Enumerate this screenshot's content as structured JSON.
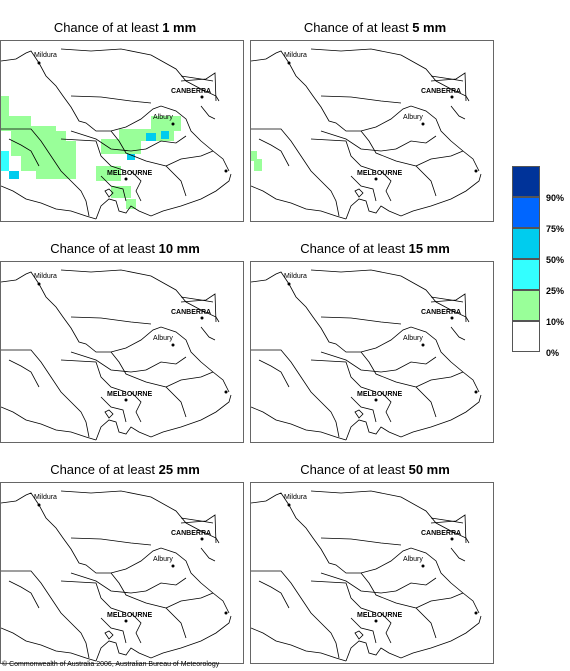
{
  "panels": [
    {
      "prefix": "Chance of at least ",
      "amount": "1 mm"
    },
    {
      "prefix": "Chance of at least ",
      "amount": "5 mm"
    },
    {
      "prefix": "Chance of at least ",
      "amount": "10 mm"
    },
    {
      "prefix": "Chance of at least ",
      "amount": "15 mm"
    },
    {
      "prefix": "Chance of at least ",
      "amount": "25 mm"
    },
    {
      "prefix": "Chance of at least ",
      "amount": "50 mm"
    }
  ],
  "places": {
    "mildura": "Mildura",
    "canberra": "CANBERRA",
    "albury": "Albury",
    "melbourne": "MELBOURNE"
  },
  "legend": {
    "labels": [
      "90%",
      "75%",
      "50%",
      "25%",
      "10%",
      "0%"
    ],
    "colors": [
      "#003399",
      "#0066ff",
      "#00ccee",
      "#33ffff",
      "#99ff99",
      "#ffffff"
    ]
  },
  "copyright": "© Commonwealth of Australia 2006, Australian Bureau of Meteorology"
}
